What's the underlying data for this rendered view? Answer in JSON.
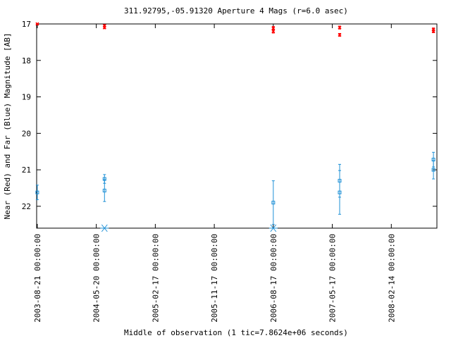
{
  "chart_data": {
    "type": "scatter",
    "title": "311.92795,-05.91320   Aperture 4 Mags (r=6.0 asec)",
    "xlabel": "Middle of observation (1 tic=7.8624e+06 seconds)",
    "ylabel": "Near (Red) and Far (Blue) Magnitude [AB]",
    "y_inverted": true,
    "ylim": [
      17,
      22.6
    ],
    "y_ticks": [
      "17",
      "18",
      "19",
      "20",
      "21",
      "22"
    ],
    "x_ticks": [
      "2003-08-21 00:00:00",
      "2004-05-20 00:00:00",
      "2005-02-17 00:00:00",
      "2005-11-17 00:00:00",
      "2006-08-17 00:00:00",
      "2007-05-17 00:00:00",
      "2008-02-14 00:00:00"
    ],
    "xlim": [
      "2003-08-18",
      "2008-09-12"
    ],
    "grid": false,
    "series": [
      {
        "name": "Near (Red)",
        "color": "#ff0000",
        "marker": "x",
        "points": [
          {
            "x": "2003-08-21",
            "y": 17.0,
            "err": 0.02
          },
          {
            "x": "2004-06-27",
            "y": 17.05,
            "err": 0.03
          },
          {
            "x": "2004-06-27",
            "y": 17.1,
            "err": 0.03
          },
          {
            "x": "2006-08-17",
            "y": 17.12,
            "err": 0.05
          },
          {
            "x": "2006-08-17",
            "y": 17.2,
            "err": 0.05
          },
          {
            "x": "2007-06-20",
            "y": 17.1,
            "err": 0.04
          },
          {
            "x": "2007-06-20",
            "y": 17.3,
            "err": 0.04
          },
          {
            "x": "2008-08-27",
            "y": 17.15,
            "err": 0.04
          },
          {
            "x": "2008-08-27",
            "y": 17.2,
            "err": 0.04
          }
        ]
      },
      {
        "name": "Far (Blue)",
        "color": "#1e90d6",
        "marker": "square",
        "points": [
          {
            "x": "2003-08-21",
            "y": 21.62,
            "err": 0.2
          },
          {
            "x": "2004-06-27",
            "y": 21.25,
            "err": 0.12
          },
          {
            "x": "2004-06-27",
            "y": 21.57,
            "err": 0.3
          },
          {
            "x": "2006-08-17",
            "y": 21.9,
            "err": 0.6
          },
          {
            "x": "2007-06-20",
            "y": 21.3,
            "err": 0.45
          },
          {
            "x": "2007-06-20",
            "y": 21.62,
            "err": 0.6
          },
          {
            "x": "2008-08-27",
            "y": 20.72,
            "err": 0.2
          },
          {
            "x": "2008-08-27",
            "y": 21.0,
            "err": 0.25
          }
        ]
      },
      {
        "name": "Far (Blue) upper limits",
        "color": "#1e90d6",
        "marker": "asterisk",
        "points": [
          {
            "x": "2004-06-27",
            "y": 22.6
          },
          {
            "x": "2006-08-17",
            "y": 22.6
          }
        ]
      }
    ]
  }
}
